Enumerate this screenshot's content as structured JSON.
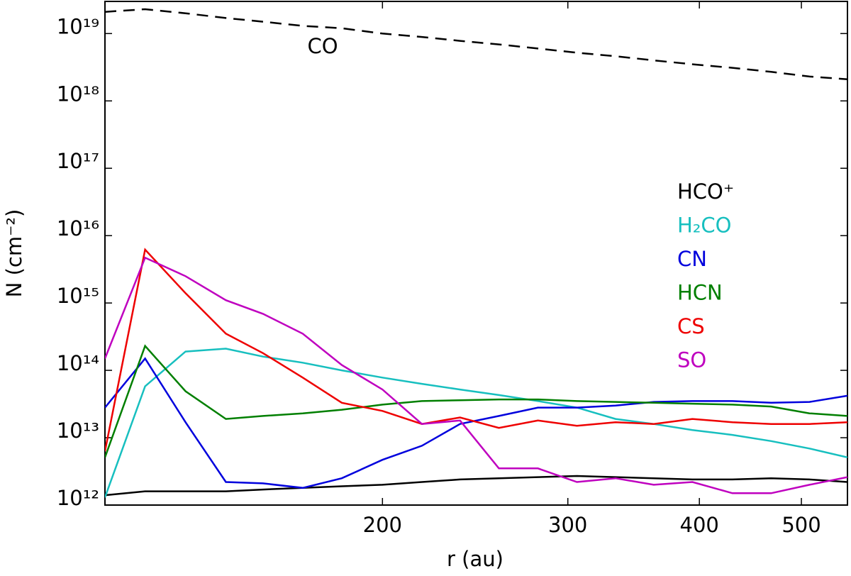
{
  "chart_data": {
    "type": "line",
    "xlabel": "r (au)",
    "ylabel": "N (cm⁻²)",
    "xscale": "log",
    "yscale": "log",
    "xlim": [
      109,
      553
    ],
    "ylim": [
      1000000000000.0,
      3e+19
    ],
    "xticks": [
      200,
      300,
      400,
      500
    ],
    "yticks": [
      {
        "value": 1000000000000.0,
        "label": "10¹²"
      },
      {
        "value": 10000000000000.0,
        "label": "10¹³"
      },
      {
        "value": 100000000000000.0,
        "label": "10¹⁴"
      },
      {
        "value": 1000000000000000.0,
        "label": "10¹⁵"
      },
      {
        "value": 1e+16,
        "label": "10¹⁶"
      },
      {
        "value": 1e+17,
        "label": "10¹⁷"
      },
      {
        "value": 1e+18,
        "label": "10¹⁸"
      },
      {
        "value": 1e+19,
        "label": "10¹⁹"
      }
    ],
    "x": [
      109,
      119,
      130,
      142,
      154,
      168,
      183,
      200,
      218,
      237,
      258,
      281,
      306,
      333,
      362,
      394,
      430,
      468,
      509,
      553
    ],
    "series": [
      {
        "name": "CO",
        "color": "#000000",
        "linestyle": "dashed",
        "values": [
          2.1e+19,
          2.3e+19,
          2e+19,
          1.7e+19,
          1.5e+19,
          1.3e+19,
          1.2e+19,
          1e+19,
          8.9e+18,
          7.8e+18,
          6.9e+18,
          6e+18,
          5.2e+18,
          4.6e+18,
          4e+18,
          3.5e+18,
          3.1e+18,
          2.7e+18,
          2.3e+18,
          2.1e+18
        ]
      },
      {
        "name": "HCO⁺",
        "color": "#000000",
        "values": [
          1400000000000.0,
          1600000000000.0,
          1600000000000.0,
          1600000000000.0,
          1700000000000.0,
          1800000000000.0,
          1900000000000.0,
          2000000000000.0,
          2200000000000.0,
          2400000000000.0,
          2500000000000.0,
          2600000000000.0,
          2700000000000.0,
          2600000000000.0,
          2500000000000.0,
          2400000000000.0,
          2400000000000.0,
          2500000000000.0,
          2400000000000.0,
          2200000000000.0
        ]
      },
      {
        "name": "H₂CO",
        "color": "#17bfbf",
        "values": [
          1300000000000.0,
          58000000000000.0,
          190000000000000.0,
          210000000000000.0,
          160000000000000.0,
          130000000000000.0,
          100000000000000.0,
          78000000000000.0,
          63000000000000.0,
          52000000000000.0,
          43000000000000.0,
          35000000000000.0,
          28000000000000.0,
          19000000000000.0,
          16000000000000.0,
          13000000000000.0,
          11000000000000.0,
          8900000000000.0,
          6900000000000.0,
          5100000000000.0
        ]
      },
      {
        "name": "CN",
        "color": "#0000dd",
        "values": [
          28000000000000.0,
          150000000000000.0,
          17000000000000.0,
          2200000000000.0,
          2100000000000.0,
          1800000000000.0,
          2500000000000.0,
          4700000000000.0,
          7600000000000.0,
          16000000000000.0,
          21000000000000.0,
          28000000000000.0,
          28000000000000.0,
          30000000000000.0,
          34000000000000.0,
          35000000000000.0,
          35000000000000.0,
          33000000000000.0,
          34000000000000.0,
          42000000000000.0
        ]
      },
      {
        "name": "HCN",
        "color": "#007f00",
        "values": [
          5100000000000.0,
          230000000000000.0,
          49000000000000.0,
          19000000000000.0,
          21000000000000.0,
          23000000000000.0,
          26000000000000.0,
          31000000000000.0,
          35000000000000.0,
          36000000000000.0,
          37000000000000.0,
          37000000000000.0,
          35000000000000.0,
          34000000000000.0,
          33000000000000.0,
          32000000000000.0,
          31000000000000.0,
          29000000000000.0,
          23000000000000.0,
          21000000000000.0
        ]
      },
      {
        "name": "CS",
        "color": "#ee0000",
        "values": [
          6300000000000.0,
          6200000000000000.0,
          1400000000000000.0,
          350000000000000.0,
          180000000000000.0,
          78000000000000.0,
          33000000000000.0,
          25000000000000.0,
          16000000000000.0,
          20000000000000.0,
          14000000000000.0,
          18000000000000.0,
          15000000000000.0,
          17000000000000.0,
          16000000000000.0,
          19000000000000.0,
          17000000000000.0,
          16000000000000.0,
          16000000000000.0,
          17000000000000.0
        ]
      },
      {
        "name": "SO",
        "color": "#bf00bf",
        "values": [
          150000000000000.0,
          4700000000000000.0,
          2500000000000000.0,
          1100000000000000.0,
          690000000000000.0,
          350000000000000.0,
          120000000000000.0,
          52000000000000.0,
          16000000000000.0,
          18000000000000.0,
          3500000000000.0,
          3500000000000.0,
          2200000000000.0,
          2500000000000.0,
          2000000000000.0,
          2200000000000.0,
          1500000000000.0,
          1500000000000.0,
          2000000000000.0,
          2600000000000.0
        ]
      }
    ]
  }
}
